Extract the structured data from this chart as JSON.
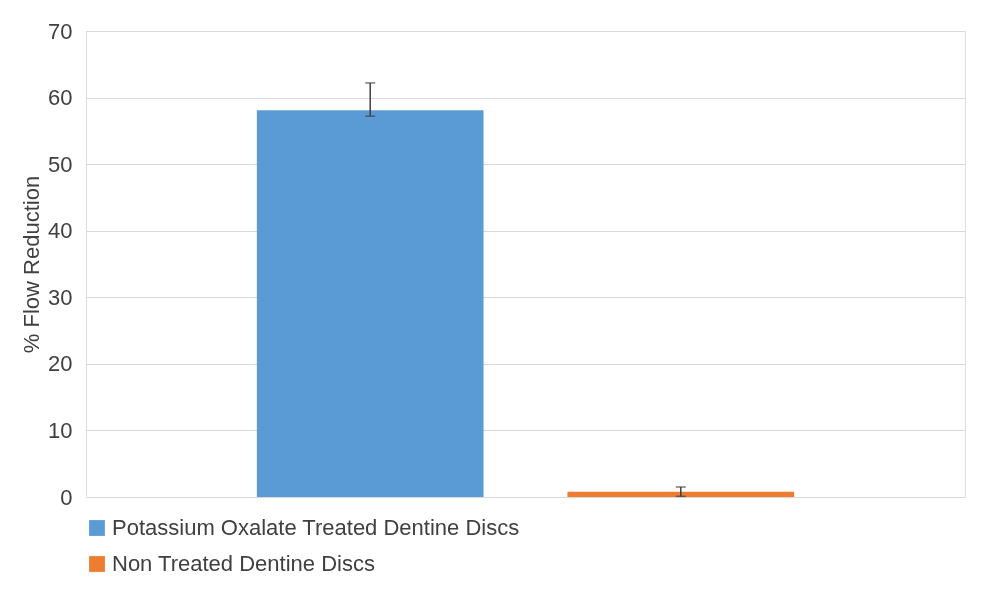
{
  "chart_data": {
    "type": "bar",
    "ylabel": "% Flow Reduction",
    "categories": [
      null
    ],
    "series": [
      {
        "name": "Potassium Oxalate Treated Dentine Discs",
        "color": "#5b9bd5",
        "values": [
          58.1
        ],
        "errors": [
          [
            57.2,
            62.2
          ]
        ]
      },
      {
        "name": "Non Treated Dentine Discs",
        "color": "#ed7d31",
        "values": [
          0.8
        ],
        "errors": [
          [
            0.1,
            1.5
          ]
        ]
      }
    ],
    "ylim": [
      0,
      70
    ],
    "yticks": [
      0,
      10,
      20,
      30,
      40,
      50,
      60,
      70
    ],
    "grid": "y",
    "legend": "bottom"
  }
}
